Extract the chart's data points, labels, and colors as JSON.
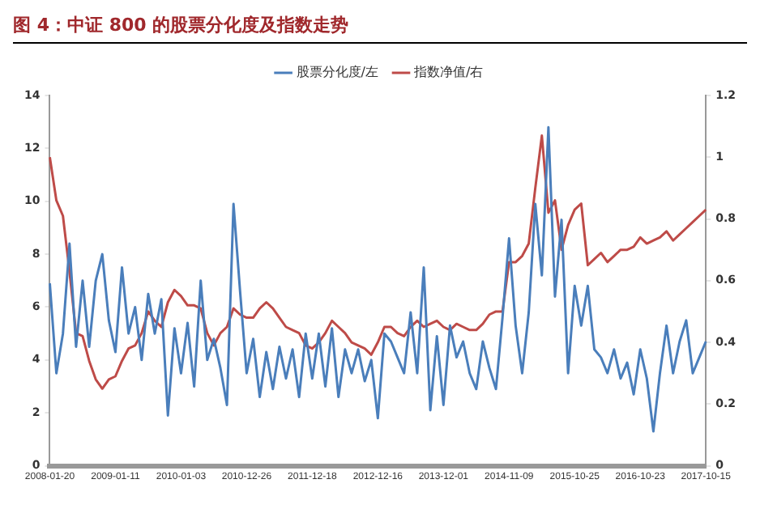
{
  "chart_data": {
    "type": "line",
    "title": "图 4：中证 800 的股票分化度及指数走势",
    "categories": [
      "2008-01-20",
      null,
      null,
      null,
      null,
      null,
      null,
      null,
      null,
      null,
      "2009-01-11",
      null,
      null,
      null,
      null,
      null,
      null,
      null,
      null,
      null,
      "2010-01-03",
      null,
      null,
      null,
      null,
      null,
      null,
      null,
      null,
      null,
      "2010-12-26",
      null,
      null,
      null,
      null,
      null,
      null,
      null,
      null,
      null,
      "2011-12-18",
      null,
      null,
      null,
      null,
      null,
      null,
      null,
      null,
      null,
      "2012-12-16",
      null,
      null,
      null,
      null,
      null,
      null,
      null,
      null,
      null,
      "2013-12-01",
      null,
      null,
      null,
      null,
      null,
      null,
      null,
      null,
      null,
      "2014-11-09",
      null,
      null,
      null,
      null,
      null,
      null,
      null,
      null,
      null,
      "2015-10-25",
      null,
      null,
      null,
      null,
      null,
      null,
      null,
      null,
      null,
      "2016-10-23",
      null,
      null,
      null,
      null,
      null,
      null,
      null,
      null,
      null,
      "2017-10-15"
    ],
    "series": [
      {
        "name": "股票分化度/左",
        "color": "#4a7ebb",
        "values": [
          6.9,
          3.5,
          5.0,
          8.4,
          4.5,
          7.0,
          4.5,
          7.0,
          8.0,
          5.5,
          4.3,
          7.5,
          5.0,
          6.0,
          4.0,
          6.5,
          5.0,
          6.3,
          1.9,
          5.2,
          3.5,
          5.4,
          3.0,
          7.0,
          4.0,
          4.8,
          3.7,
          2.3,
          9.9,
          6.6,
          3.5,
          4.8,
          2.6,
          4.3,
          2.9,
          4.5,
          3.3,
          4.4,
          2.6,
          5.0,
          3.3,
          5.0,
          3.0,
          5.2,
          2.6,
          4.4,
          3.5,
          4.4,
          3.2,
          4.0,
          1.8,
          5.0,
          4.7,
          4.1,
          3.5,
          5.8,
          3.5,
          7.5,
          2.1,
          4.9,
          2.3,
          5.3,
          4.1,
          4.7,
          3.5,
          2.9,
          4.7,
          3.7,
          2.9,
          5.6,
          8.6,
          5.3,
          3.5,
          5.8,
          9.9,
          7.2,
          12.8,
          6.4,
          9.3,
          3.5,
          6.8,
          5.3,
          6.8,
          4.4,
          4.1,
          3.5,
          4.4,
          3.3,
          3.9,
          2.7,
          4.4,
          3.3,
          1.3,
          3.5,
          5.3,
          3.5,
          4.7,
          5.5,
          3.5,
          4.1,
          4.7
        ]
      },
      {
        "name": "指数净值/右",
        "color": "#be4b48",
        "axis": "y2",
        "values": [
          1.0,
          0.86,
          0.81,
          0.63,
          0.43,
          0.42,
          0.34,
          0.28,
          0.25,
          0.28,
          0.29,
          0.34,
          0.38,
          0.39,
          0.43,
          0.5,
          0.47,
          0.45,
          0.53,
          0.57,
          0.55,
          0.52,
          0.52,
          0.51,
          0.43,
          0.39,
          0.43,
          0.45,
          0.51,
          0.49,
          0.48,
          0.48,
          0.51,
          0.53,
          0.51,
          0.48,
          0.45,
          0.44,
          0.43,
          0.39,
          0.38,
          0.4,
          0.43,
          0.47,
          0.45,
          0.43,
          0.4,
          0.39,
          0.38,
          0.36,
          0.4,
          0.45,
          0.45,
          0.43,
          0.42,
          0.45,
          0.47,
          0.45,
          0.46,
          0.47,
          0.45,
          0.44,
          0.46,
          0.45,
          0.44,
          0.44,
          0.46,
          0.49,
          0.5,
          0.5,
          0.66,
          0.66,
          0.68,
          0.72,
          0.9,
          1.07,
          0.82,
          0.86,
          0.7,
          0.78,
          0.83,
          0.85,
          0.65,
          0.67,
          0.69,
          0.66,
          0.68,
          0.7,
          0.7,
          0.71,
          0.74,
          0.72,
          0.73,
          0.74,
          0.76,
          0.73,
          0.75,
          0.77,
          0.79,
          0.81,
          0.83
        ]
      }
    ],
    "ylim": [
      0,
      14
    ],
    "yticks": [
      0,
      2,
      4,
      6,
      8,
      10,
      12,
      14
    ],
    "y2lim": [
      0,
      1.2
    ],
    "y2ticks": [
      0,
      0.2,
      0.4,
      0.6,
      0.8,
      1,
      1.2
    ],
    "legend": "top",
    "grid": false,
    "marker": "none",
    "line_style": "solid"
  }
}
